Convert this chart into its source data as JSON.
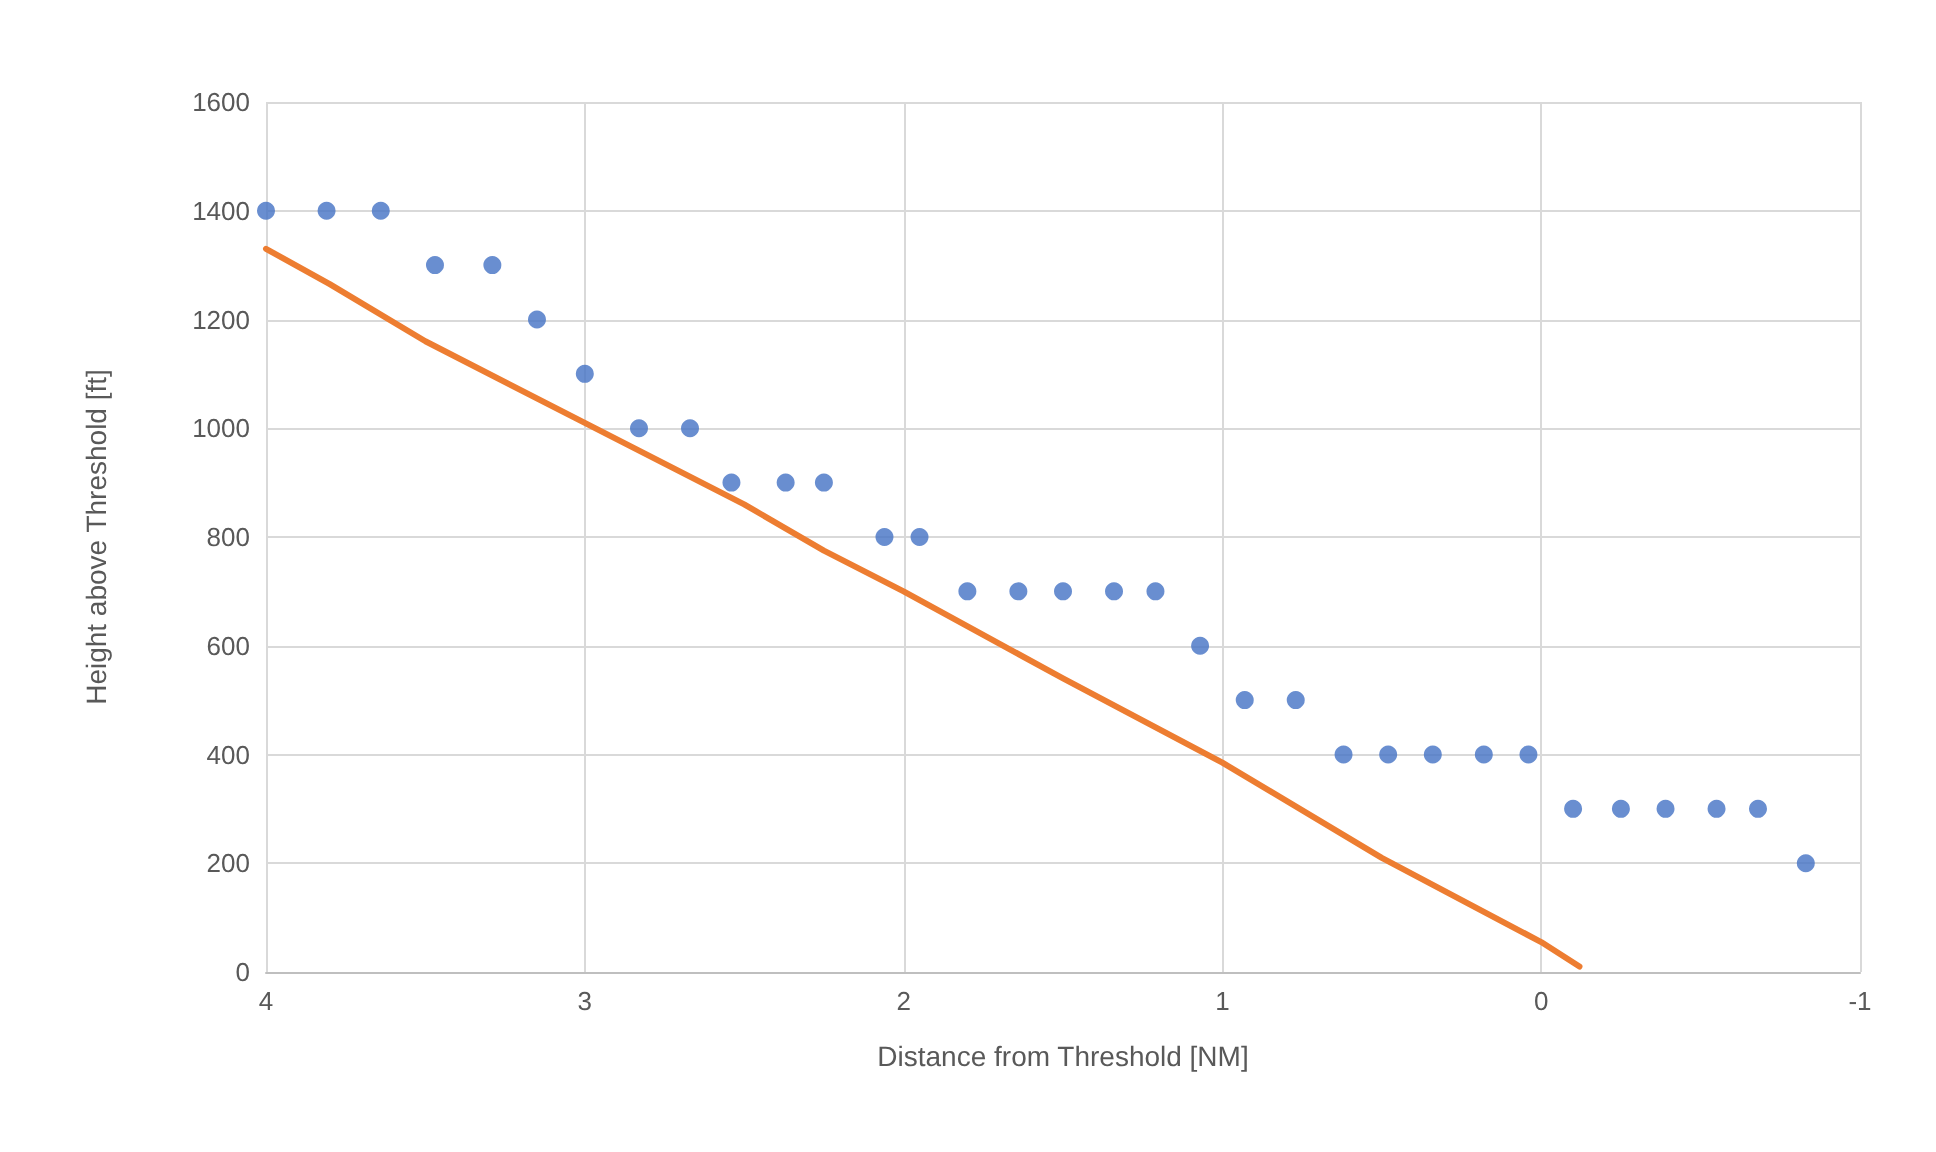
{
  "chart_data": {
    "type": "scatter",
    "xlabel": "Distance from Threshold [NM]",
    "ylabel": "Height above Threshold [ft]",
    "xlim": [
      4,
      -1
    ],
    "xticks": [
      4,
      3,
      2,
      1,
      0,
      -1
    ],
    "ylim": [
      0,
      1600
    ],
    "yticks": [
      0,
      200,
      400,
      600,
      800,
      1000,
      1200,
      1400,
      1600
    ],
    "grid": true,
    "marker": "circle",
    "series": [
      {
        "type": "scatter",
        "color": "#4472c4",
        "x": [
          4.0,
          3.81,
          3.64,
          3.47,
          3.29,
          3.15,
          3.0,
          2.83,
          2.67,
          2.54,
          2.37,
          2.25,
          2.06,
          1.95,
          1.8,
          1.64,
          1.5,
          1.34,
          1.21,
          1.07,
          0.93,
          0.77,
          0.62,
          0.48,
          0.34,
          0.18,
          0.04,
          -0.1,
          -0.25,
          -0.39,
          -0.55,
          -0.68,
          -0.83
        ],
        "values": [
          1400,
          1400,
          1400,
          1300,
          1300,
          1200,
          1100,
          1000,
          1000,
          900,
          900,
          900,
          800,
          800,
          700,
          700,
          700,
          700,
          700,
          600,
          500,
          500,
          400,
          400,
          400,
          400,
          400,
          300,
          300,
          300,
          300,
          300,
          200
        ]
      },
      {
        "type": "line",
        "color": "#ed7d31",
        "marker": "none",
        "line_style": "solid",
        "x": [
          4,
          3.8,
          3.5,
          3,
          2.5,
          2.25,
          2,
          1.5,
          1,
          0.5,
          0,
          -0.12
        ],
        "values": [
          1330,
          1265,
          1160,
          1010,
          860,
          775,
          700,
          540,
          385,
          210,
          55,
          10
        ]
      }
    ]
  }
}
